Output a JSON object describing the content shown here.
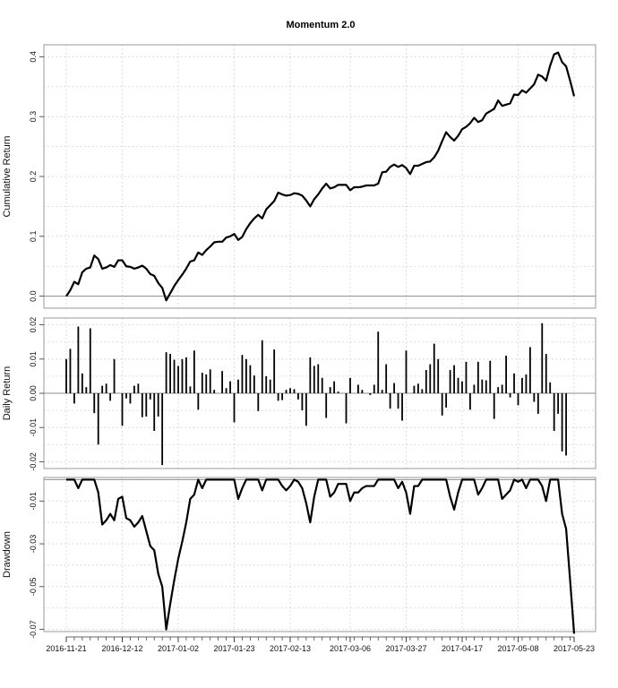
{
  "chart_data": {
    "type": "line",
    "title": "Momentum 2.0",
    "x_ticks": [
      "2016-11-21",
      "2016-12-12",
      "2017-01-02",
      "2017-01-23",
      "2017-02-13",
      "2017-03-06",
      "2017-03-27",
      "2017-04-17",
      "2017-05-08",
      "2017-05-23"
    ],
    "panels": [
      {
        "type": "line",
        "ylabel": "Cumulative Return",
        "ylim": [
          -0.02,
          0.42
        ],
        "yticks": [
          "0.0",
          "0.1",
          "0.2",
          "0.3",
          "0.4"
        ],
        "ytick_values": [
          0,
          0.1,
          0.2,
          0.3,
          0.4
        ],
        "baseline": 0,
        "values": [
          0.0,
          0.01,
          0.024,
          0.02,
          0.04,
          0.046,
          0.048,
          0.068,
          0.062,
          0.046,
          0.048,
          0.052,
          0.049,
          0.06,
          0.06,
          0.05,
          0.049,
          0.046,
          0.048,
          0.051,
          0.046,
          0.037,
          0.034,
          0.022,
          0.014,
          -0.007,
          0.005,
          0.017,
          0.027,
          0.036,
          0.046,
          0.058,
          0.06,
          0.073,
          0.069,
          0.077,
          0.083,
          0.09,
          0.091,
          0.091,
          0.098,
          0.1,
          0.104,
          0.094,
          0.099,
          0.112,
          0.122,
          0.13,
          0.136,
          0.13,
          0.145,
          0.152,
          0.159,
          0.173,
          0.17,
          0.168,
          0.169,
          0.172,
          0.171,
          0.168,
          0.16,
          0.15,
          0.162,
          0.17,
          0.18,
          0.188,
          0.18,
          0.182,
          0.186,
          0.186,
          0.186,
          0.177,
          0.182,
          0.182,
          0.183,
          0.185,
          0.185,
          0.185,
          0.188,
          0.207,
          0.208,
          0.216,
          0.22,
          0.216,
          0.219,
          0.214,
          0.204,
          0.218,
          0.218,
          0.221,
          0.224,
          0.225,
          0.232,
          0.243,
          0.259,
          0.274,
          0.266,
          0.26,
          0.268,
          0.279,
          0.283,
          0.289,
          0.298,
          0.291,
          0.294,
          0.305,
          0.309,
          0.313,
          0.327,
          0.318,
          0.32,
          0.322,
          0.337,
          0.336,
          0.344,
          0.34,
          0.347,
          0.354,
          0.37,
          0.367,
          0.36,
          0.385,
          0.404,
          0.407,
          0.391,
          0.384,
          0.36,
          0.334
        ]
      },
      {
        "type": "bar",
        "ylabel": "Daily Return",
        "ylim": [
          -0.022,
          0.022
        ],
        "yticks": [
          "-0.02",
          "-0.01",
          "0.00",
          "0.01",
          "0.02"
        ],
        "ytick_values": [
          -0.02,
          -0.01,
          0,
          0.01,
          0.02
        ],
        "baseline": 0,
        "values": [
          0.01,
          0.013,
          -0.003,
          0.0195,
          0.0058,
          0.0018,
          0.019,
          -0.0058,
          -0.015,
          0.0022,
          0.0028,
          -0.0022,
          0.01,
          0.0,
          -0.0095,
          -0.0015,
          -0.003,
          0.0022,
          0.0028,
          -0.007,
          -0.0068,
          -0.0018,
          -0.011,
          -0.0068,
          -0.021,
          0.012,
          0.0115,
          0.0098,
          0.008,
          0.01,
          0.0105,
          0.002,
          0.0125,
          -0.0048,
          0.006,
          0.0055,
          0.007,
          0.001,
          0.0,
          0.0065,
          0.0015,
          0.0035,
          -0.0085,
          0.004,
          0.0112,
          0.01,
          0.0082,
          0.0052,
          -0.0052,
          0.0155,
          0.005,
          0.004,
          0.0128,
          -0.0022,
          -0.002,
          0.001,
          0.0015,
          0.0012,
          -0.0018,
          -0.005,
          -0.0095,
          0.0105,
          0.008,
          0.0085,
          0.0045,
          -0.0072,
          0.0018,
          0.0035,
          0.0005,
          0.0,
          -0.0088,
          0.0045,
          0.0,
          0.0025,
          0.001,
          0.0,
          -0.0005,
          0.0025,
          0.018,
          0.001,
          0.0085,
          -0.0045,
          0.003,
          -0.0045,
          -0.008,
          0.0125,
          0.0,
          0.0022,
          0.0028,
          0.0012,
          0.0068,
          0.0085,
          0.0145,
          0.01,
          -0.0065,
          -0.0042,
          0.0068,
          0.0082,
          0.0045,
          0.0035,
          0.0092,
          -0.0048,
          0.0025,
          0.0092,
          0.004,
          0.0038,
          0.0095,
          -0.0075,
          0.0018,
          0.0025,
          0.011,
          -0.0012,
          0.0058,
          -0.0035,
          0.0045,
          0.0055,
          0.0135,
          -0.0025,
          -0.006,
          0.0205,
          0.0115,
          0.0032,
          -0.011,
          -0.006,
          -0.017,
          -0.0182
        ]
      },
      {
        "type": "line",
        "ylabel": "Drawdown",
        "ylim": [
          -0.071,
          0.001
        ],
        "yticks": [
          "-0.07",
          "-0.05",
          "-0.03",
          "-0.01"
        ],
        "ytick_values": [
          -0.07,
          -0.05,
          -0.03,
          -0.01
        ],
        "baseline": 0,
        "values": [
          0.0,
          0.0,
          0.0,
          -0.004,
          0.0,
          0.0,
          0.0,
          0.0,
          -0.006,
          -0.021,
          -0.019,
          -0.016,
          -0.019,
          -0.009,
          -0.008,
          -0.018,
          -0.019,
          -0.022,
          -0.02,
          -0.017,
          -0.024,
          -0.031,
          -0.033,
          -0.044,
          -0.05,
          -0.07,
          -0.058,
          -0.047,
          -0.037,
          -0.029,
          -0.02,
          -0.009,
          -0.007,
          0.0,
          -0.004,
          0.0,
          0.0,
          0.0,
          0.0,
          0.0,
          0.0,
          0.0,
          0.0,
          -0.009,
          -0.004,
          0.0,
          0.0,
          0.0,
          0.0,
          -0.005,
          0.0,
          0.0,
          0.0,
          0.0,
          -0.003,
          -0.005,
          -0.003,
          0.0,
          -0.001,
          -0.004,
          -0.011,
          -0.02,
          -0.008,
          0.0,
          0.0,
          0.0,
          -0.008,
          -0.006,
          -0.002,
          -0.002,
          -0.002,
          -0.01,
          -0.006,
          -0.006,
          -0.004,
          -0.003,
          -0.003,
          -0.003,
          0.0,
          0.0,
          0.0,
          0.0,
          0.0,
          -0.004,
          -0.001,
          -0.006,
          -0.016,
          -0.003,
          -0.003,
          0.0,
          0.0,
          0.0,
          0.0,
          0.0,
          0.0,
          0.0,
          -0.008,
          -0.014,
          -0.006,
          0.0,
          0.0,
          0.0,
          0.0,
          -0.007,
          -0.004,
          0.0,
          0.0,
          0.0,
          0.0,
          -0.009,
          -0.007,
          -0.005,
          0.0,
          -0.001,
          0.0,
          -0.004,
          0.0,
          0.0,
          0.0,
          -0.003,
          -0.01,
          0.0,
          0.0,
          0.0,
          -0.016,
          -0.023,
          -0.047,
          -0.072
        ]
      }
    ]
  }
}
